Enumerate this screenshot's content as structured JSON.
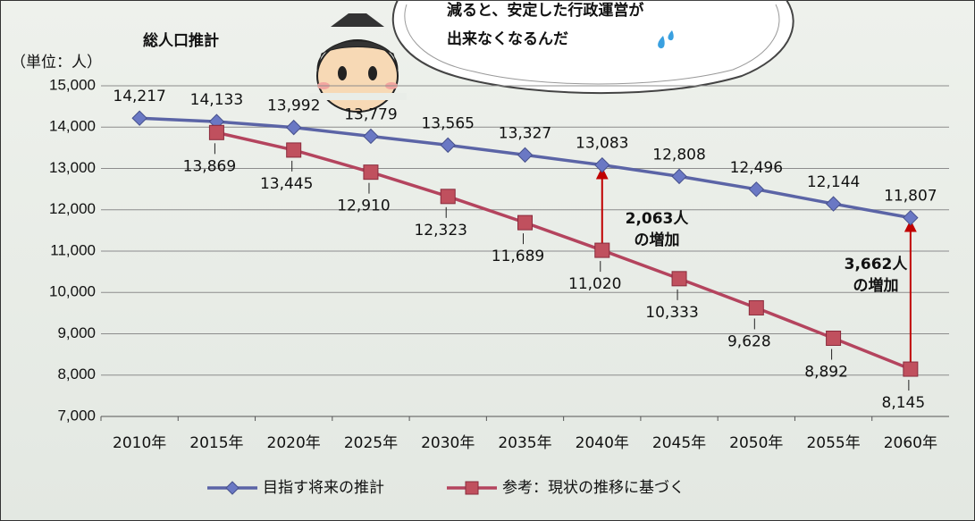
{
  "chart_data": {
    "type": "line",
    "title": "総人口推計",
    "y_unit_label": "（単位：人）",
    "bubble": {
      "lines": [
        "減ると、安定した行政運営が",
        "出来なくなるんだ"
      ]
    },
    "categories": [
      "2010年",
      "2015年",
      "2020年",
      "2025年",
      "2030年",
      "2035年",
      "2040年",
      "2045年",
      "2050年",
      "2055年",
      "2060年"
    ],
    "series": [
      {
        "name": "目指す将来の推計",
        "color": "#5b64a6",
        "marker": "diamond",
        "values": [
          14217,
          14133,
          13992,
          13779,
          13565,
          13327,
          13083,
          12808,
          12496,
          12144,
          11807
        ],
        "value_labels": [
          "14,217",
          "14,133",
          "13,992",
          "13,779",
          "13,565",
          "13,327",
          "13,083",
          "12,808",
          "12,496",
          "12,144",
          "11,807"
        ]
      },
      {
        "name": "参考：現状の推移に基づく",
        "color": "#b4445e",
        "marker": "square",
        "values": [
          null,
          13869,
          13445,
          12910,
          12323,
          11689,
          11020,
          10333,
          9628,
          8892,
          8145
        ],
        "value_labels": [
          null,
          "13,869",
          "13,445",
          "12,910",
          "12,323",
          "11,689",
          "11,020",
          "10,333",
          "9,628",
          "8,892",
          "8,145"
        ]
      }
    ],
    "annotations": [
      {
        "lines": [
          "2,063人",
          "の増加"
        ]
      },
      {
        "lines": [
          "3,662人",
          "の増加"
        ]
      }
    ],
    "ylim": [
      7000,
      15000
    ],
    "yticks": [
      {
        "value": 7000,
        "label": "7,000"
      },
      {
        "value": 8000,
        "label": "8,000"
      },
      {
        "value": 9000,
        "label": "9,000"
      },
      {
        "value": 10000,
        "label": "10,000"
      },
      {
        "value": 11000,
        "label": "11,000"
      },
      {
        "value": 12000,
        "label": "12,000"
      },
      {
        "value": 13000,
        "label": "13,000"
      },
      {
        "value": 14000,
        "label": "14,000"
      },
      {
        "value": 15000,
        "label": "15,000"
      }
    ],
    "grid": true,
    "legend": "bottom"
  }
}
